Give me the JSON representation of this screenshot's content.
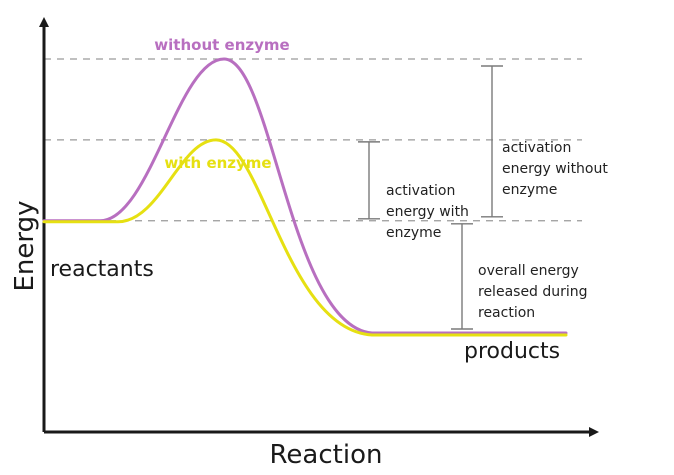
{
  "chart_data": {
    "type": "line",
    "xlabel": "Reaction",
    "ylabel": "Energy",
    "series": [
      {
        "name": "without enzyme",
        "color": "#b86fc0"
      },
      {
        "name": "with enzyme",
        "color": "#e6e012"
      }
    ],
    "levels": {
      "reactants": 0.6,
      "products": 0.32,
      "peak_without_enzyme": 1.0,
      "peak_with_enzyme": 0.8
    },
    "level_labels": {
      "reactants": "reactants",
      "products": "products"
    },
    "annotations": [
      {
        "id": "activation-with",
        "lines": [
          "activation",
          "energy with",
          "enzyme"
        ],
        "from": "reactants",
        "to": "peak_with_enzyme"
      },
      {
        "id": "activation-without",
        "lines": [
          "activation",
          "energy without",
          "enzyme"
        ],
        "from": "reactants",
        "to": "peak_without_enzyme"
      },
      {
        "id": "overall-released",
        "lines": [
          "overall energy",
          "released during",
          "reaction"
        ],
        "from": "products",
        "to": "reactants"
      }
    ],
    "colors": {
      "axis": "#1a1a1a",
      "guide": "#9a9a9a",
      "bracket": "#7a7a7a"
    }
  }
}
